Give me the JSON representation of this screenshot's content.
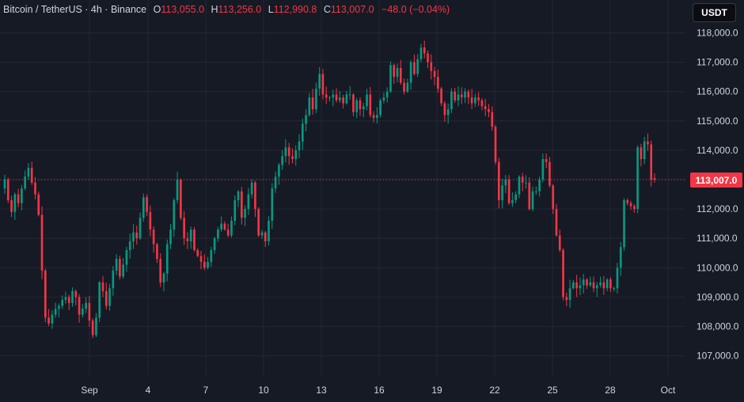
{
  "legend": {
    "symbol": "Bitcoin / TetherUS · 4h · Binance",
    "open_label": "O",
    "open": "113,055.0",
    "high_label": "H",
    "high": "113,256.0",
    "low_label": "L",
    "low": "112,990.8",
    "close_label": "C",
    "close": "113,007.0",
    "change": "−48.0 (−0.04%)"
  },
  "currency": "USDT",
  "last_price_label": "113,007.0",
  "colors": {
    "up": "#089981",
    "down": "#f23645",
    "background": "#161a25",
    "grid": "#242733",
    "text": "#d1d4dc"
  },
  "chart_data": {
    "type": "candlestick",
    "y_range": [
      106500,
      118300
    ],
    "y_ticks": [
      107000,
      108000,
      109000,
      110000,
      111000,
      112000,
      113000,
      114000,
      115000,
      116000,
      117000,
      118000
    ],
    "y_tick_labels": [
      "107,000.0",
      "108,000.0",
      "109,000.0",
      "110,000.0",
      "111,000.0",
      "112,000.0",
      "113,000.0",
      "114,000.0",
      "115,000.0",
      "116,000.0",
      "117,000.0",
      "118,000.0"
    ],
    "x_tick_labels": [
      "Sep",
      "4",
      "7",
      "10",
      "13",
      "16",
      "19",
      "22",
      "25",
      "28",
      "Oct"
    ],
    "last_price": 113007.0,
    "closes": [
      113000,
      112300,
      111900,
      112500,
      112200,
      112700,
      113100,
      113400,
      112900,
      112500,
      111800,
      109900,
      108300,
      108100,
      108400,
      108600,
      108700,
      108900,
      109000,
      108800,
      109200,
      109000,
      108400,
      108600,
      108800,
      108200,
      107700,
      108300,
      109500,
      109200,
      108700,
      109300,
      109900,
      110300,
      109700,
      110100,
      110600,
      110900,
      111200,
      111000,
      111700,
      112400,
      111900,
      111300,
      110800,
      110300,
      109500,
      109800,
      110800,
      111300,
      112300,
      113000,
      111700,
      111000,
      110900,
      111300,
      110600,
      110400,
      110200,
      110000,
      110200,
      110600,
      111000,
      111300,
      111500,
      111300,
      111100,
      111600,
      112300,
      112600,
      111700,
      112000,
      112500,
      112900,
      112000,
      111100,
      111200,
      110900,
      111600,
      112700,
      113100,
      113500,
      113800,
      114100,
      113800,
      113700,
      114000,
      114300,
      114900,
      115200,
      115800,
      115400,
      116100,
      116600,
      115900,
      115800,
      115800,
      115900,
      115700,
      115800,
      115600,
      115900,
      115900,
      115300,
      115700,
      115400,
      115500,
      115900,
      115200,
      115100,
      115200,
      115700,
      115800,
      116000,
      116900,
      116500,
      116800,
      116300,
      116000,
      116300,
      117000,
      116600,
      117100,
      117500,
      117300,
      117000,
      116700,
      116500,
      116100,
      115600,
      115200,
      115400,
      116000,
      115700,
      115900,
      115800,
      116000,
      115800,
      115600,
      115800,
      115700,
      115500,
      115400,
      115300,
      114800,
      113600,
      112300,
      112800,
      113000,
      112200,
      112300,
      112500,
      113100,
      112900,
      112900,
      112000,
      112600,
      112600,
      113000,
      113700,
      113600,
      112800,
      112000,
      111100,
      110600,
      109000,
      108900,
      109300,
      109500,
      109300,
      109400,
      109600,
      109400,
      109500,
      109300,
      109400,
      109500,
      109300,
      109600,
      109300,
      109300,
      110000,
      110700,
      112300,
      112200,
      112100,
      112000,
      114100,
      113700,
      114300,
      114200,
      113000,
      113007
    ]
  }
}
